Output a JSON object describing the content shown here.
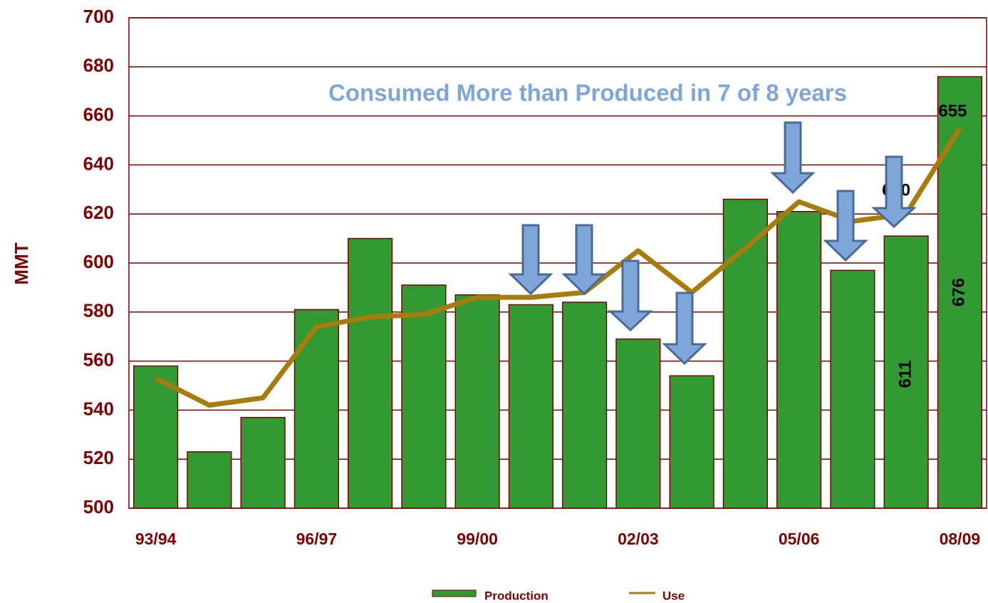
{
  "chart_data": {
    "type": "bar",
    "annotation": "Consumed More than Produced in 7 of 8 years",
    "y_label": "MMT",
    "categories": [
      "93/94",
      null,
      null,
      "96/97",
      null,
      null,
      "99/00",
      null,
      null,
      "02/03",
      null,
      null,
      "05/06",
      null,
      null,
      "08/09"
    ],
    "series": [
      {
        "name": "Production",
        "type": "bar",
        "color": "#339933",
        "values": [
          558,
          523,
          537,
          581,
          610,
          591,
          587,
          583,
          584,
          569,
          554,
          626,
          621,
          597,
          611,
          676
        ]
      },
      {
        "name": "Use",
        "type": "line",
        "color": "#a67c0c",
        "values": [
          553,
          542,
          545,
          574,
          578,
          579,
          586,
          586,
          588,
          605,
          588,
          606,
          625,
          617,
          620,
          655
        ]
      }
    ],
    "ylim": [
      500,
      700
    ],
    "yticks": [
      500,
      520,
      540,
      560,
      580,
      600,
      620,
      640,
      660,
      680,
      700
    ],
    "grid": true,
    "legend": "bottom"
  }
}
